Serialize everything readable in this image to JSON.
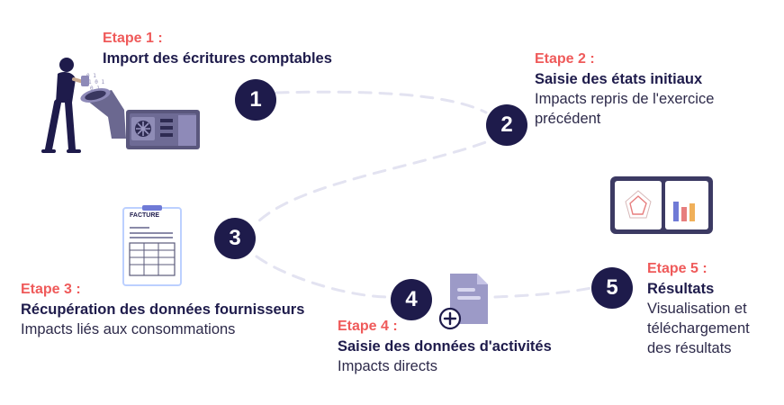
{
  "steps": [
    {
      "number": "1",
      "label": "Etape 1 :",
      "title": "Import des écritures comptables",
      "description": ""
    },
    {
      "number": "2",
      "label": "Etape 2 :",
      "title": "Saisie des états initiaux",
      "description": "Impacts repris de l'exercice précédent"
    },
    {
      "number": "3",
      "label": "Etape 3 :",
      "title": "Récupération des données fournisseurs",
      "description": "Impacts liés aux consommations"
    },
    {
      "number": "4",
      "label": "Etape 4 :",
      "title": "Saisie des données d'activités",
      "description": "Impacts directs"
    },
    {
      "number": "5",
      "label": "Etape 5 :",
      "title": "Résultats",
      "description": "Visualisation et téléchargement des résultats"
    }
  ],
  "invoice": {
    "header": "FACTURE"
  },
  "colors": {
    "number_circle": "#1e1b4b",
    "step_label": "#ef5a5a",
    "title": "#1e1b4b",
    "connector": "#e3e3f1"
  },
  "icons": [
    "person-funnel-machine-illustration",
    "invoice-clipboard-icon",
    "document-plus-icon",
    "dashboard-monitor-icon"
  ]
}
